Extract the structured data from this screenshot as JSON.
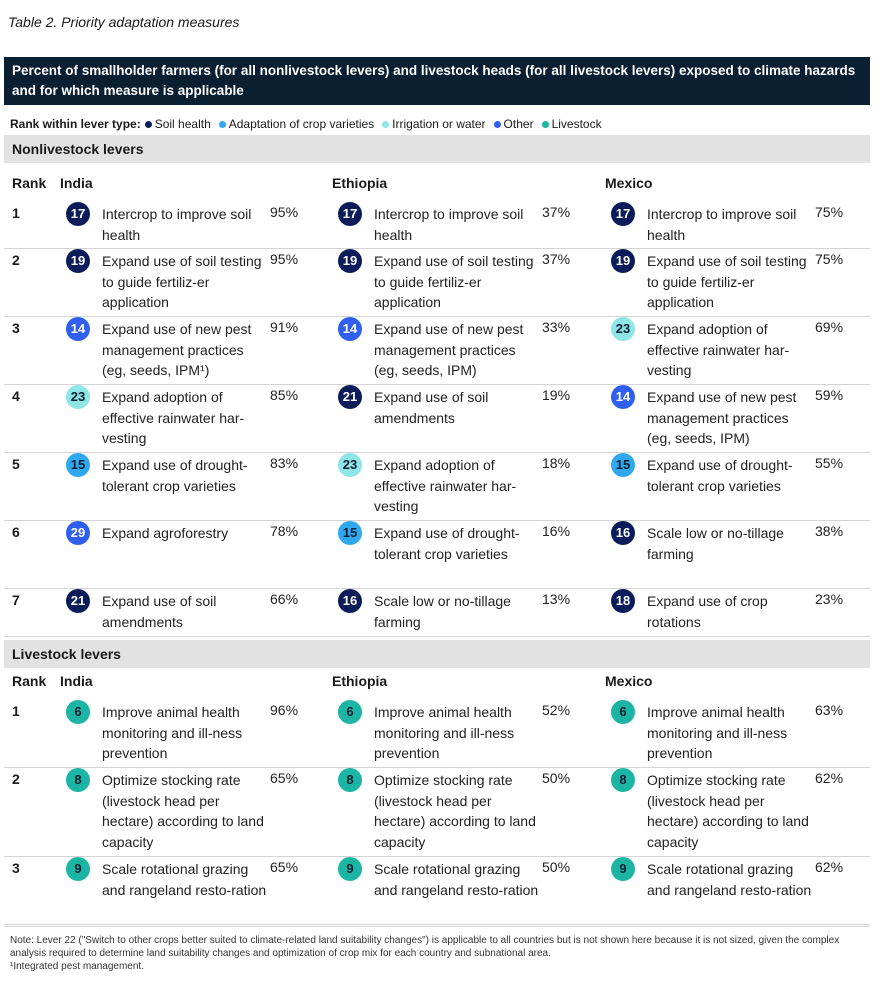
{
  "caption": "Table 2. Priority adaptation measures",
  "header": "Percent of smallholder farmers (for all nonlivestock levers) and livestock heads (for all livestock levers) exposed to climate hazards and for which measure is applicable",
  "legend": {
    "lead": "Rank within lever type:",
    "items": [
      {
        "label": "Soil health",
        "color": "#0b1c5a"
      },
      {
        "label": "Adaptation of crop varieties",
        "color": "#30a8f0"
      },
      {
        "label": "Irrigation or water",
        "color": "#8ee6e6"
      },
      {
        "label": "Other",
        "color": "#2f5ff0"
      },
      {
        "label": "Livestock",
        "color": "#1cb5a3"
      }
    ]
  },
  "columns": {
    "rank": "Rank",
    "c1": "India",
    "c2": "Ethiopia",
    "c3": "Mexico"
  },
  "nonlivestock": {
    "title": "Nonlivestock levers",
    "rows": [
      {
        "rank": "1",
        "cells": [
          {
            "num": "17",
            "cat": "navy",
            "text": "Intercrop to improve soil health",
            "pct": "95%"
          },
          {
            "num": "17",
            "cat": "navy",
            "text": "Intercrop to improve soil health",
            "pct": "37%"
          },
          {
            "num": "17",
            "cat": "navy",
            "text": "Intercrop to improve soil health",
            "pct": "75%"
          }
        ]
      },
      {
        "rank": "2",
        "cells": [
          {
            "num": "19",
            "cat": "navy",
            "text": "Expand use of soil testing to guide fertiliz-er application",
            "pct": "95%"
          },
          {
            "num": "19",
            "cat": "navy",
            "text": "Expand use of soil testing to guide fertiliz-er application",
            "pct": "37%"
          },
          {
            "num": "19",
            "cat": "navy",
            "text": "Expand use of soil testing to guide fertiliz-er application",
            "pct": "75%"
          }
        ]
      },
      {
        "rank": "3",
        "cells": [
          {
            "num": "14",
            "cat": "blue",
            "text": "Expand use of new pest management practices (eg, seeds, IPM¹)",
            "pct": "91%"
          },
          {
            "num": "14",
            "cat": "blue",
            "text": "Expand use of new pest management practices (eg, seeds, IPM)",
            "pct": "33%"
          },
          {
            "num": "23",
            "cat": "cyan",
            "text": "Expand adoption of effective rainwater har-vesting",
            "pct": "69%"
          }
        ]
      },
      {
        "rank": "4",
        "cells": [
          {
            "num": "23",
            "cat": "cyan",
            "text": "Expand adoption of effective rainwater har-vesting",
            "pct": "85%"
          },
          {
            "num": "21",
            "cat": "navy",
            "text": "Expand use of soil amendments",
            "pct": "19%"
          },
          {
            "num": "14",
            "cat": "blue",
            "text": "Expand use of new pest management practices (eg, seeds, IPM)",
            "pct": "59%"
          }
        ]
      },
      {
        "rank": "5",
        "cells": [
          {
            "num": "15",
            "cat": "sky",
            "text": "Expand use of drought-tolerant crop varieties",
            "pct": "83%"
          },
          {
            "num": "23",
            "cat": "cyan",
            "text": "Expand adoption of effective rainwater har-vesting",
            "pct": "18%"
          },
          {
            "num": "15",
            "cat": "sky",
            "text": "Expand use of drought-tolerant crop varieties",
            "pct": "55%"
          }
        ]
      },
      {
        "rank": "6",
        "cells": [
          {
            "num": "29",
            "cat": "blue",
            "text": "Expand agroforestry",
            "pct": "78%"
          },
          {
            "num": "15",
            "cat": "sky",
            "text": "Expand use of drought-tolerant crop varieties",
            "pct": "16%"
          },
          {
            "num": "16",
            "cat": "navy",
            "text": "Scale low or no-tillage farming",
            "pct": "38%"
          }
        ]
      },
      {
        "rank": "7",
        "cells": [
          {
            "num": "21",
            "cat": "navy",
            "text": "Expand use of soil amendments",
            "pct": "66%"
          },
          {
            "num": "16",
            "cat": "navy",
            "text": "Scale low or no-tillage farming",
            "pct": "13%"
          },
          {
            "num": "18",
            "cat": "navy",
            "text": "Expand use of crop rotations",
            "pct": "23%"
          }
        ]
      }
    ]
  },
  "livestock": {
    "title": "Livestock levers",
    "rows": [
      {
        "rank": "1",
        "cells": [
          {
            "num": "6",
            "cat": "teal",
            "text": "Improve animal health monitoring and ill-ness prevention",
            "pct": "96%"
          },
          {
            "num": "6",
            "cat": "teal",
            "text": "Improve animal health monitoring and ill-ness prevention",
            "pct": "52%"
          },
          {
            "num": "6",
            "cat": "teal",
            "text": "Improve animal health monitoring and ill-ness prevention",
            "pct": "63%"
          }
        ]
      },
      {
        "rank": "2",
        "cells": [
          {
            "num": "8",
            "cat": "teal",
            "text": "Optimize stocking rate (livestock head per hectare) according to land capacity",
            "pct": "65%"
          },
          {
            "num": "8",
            "cat": "teal",
            "text": "Optimize stocking rate (livestock head per hectare) according to land capacity",
            "pct": "50%"
          },
          {
            "num": "8",
            "cat": "teal",
            "text": "Optimize stocking rate (livestock head per hectare) according to land capacity",
            "pct": "62%"
          }
        ]
      },
      {
        "rank": "3",
        "cells": [
          {
            "num": "9",
            "cat": "teal",
            "text": "Scale rotational grazing and rangeland resto-ration",
            "pct": "65%"
          },
          {
            "num": "9",
            "cat": "teal",
            "text": "Scale rotational grazing and rangeland resto-ration",
            "pct": "50%"
          },
          {
            "num": "9",
            "cat": "teal",
            "text": "Scale rotational grazing and rangeland resto-ration",
            "pct": "62%"
          }
        ]
      }
    ]
  },
  "note": "Note: Lever 22 (\"Switch to other crops better suited to climate-related land suitability changes\") is applicable to all countries but is not shown here because it is not sized, given the complex analysis required to determine land suitability changes and optimization of crop mix for each country and subnational area.",
  "footnote": "¹Integrated pest management."
}
